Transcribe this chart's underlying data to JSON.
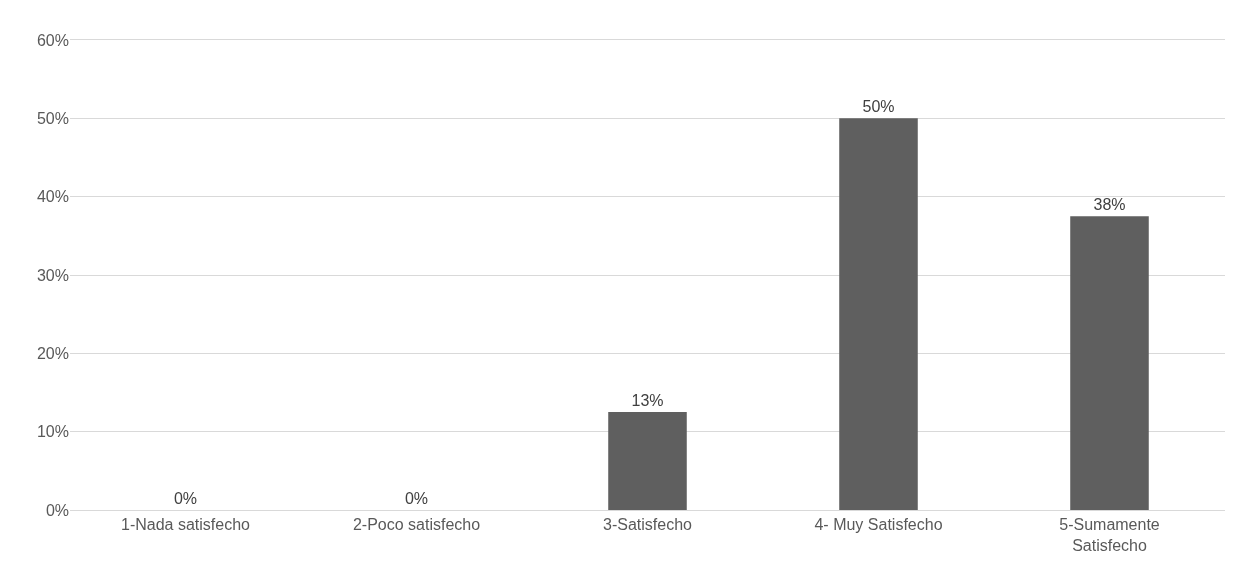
{
  "chart_data": {
    "type": "bar",
    "categories": [
      "1-Nada satisfecho",
      "2-Poco satisfecho",
      "3-Satisfecho",
      "4- Muy Satisfecho",
      "5-Sumamente Satisfecho"
    ],
    "values": [
      0,
      0,
      12.5,
      50,
      37.5
    ],
    "value_labels": [
      "0%",
      "0%",
      "13%",
      "50%",
      "38%"
    ],
    "color": "#5f5f5f",
    "ylim": [
      0,
      60
    ],
    "yticks": [
      {
        "value": 0,
        "label": "0%"
      },
      {
        "value": 10,
        "label": "10%"
      },
      {
        "value": 20,
        "label": "20%"
      },
      {
        "value": 30,
        "label": "30%"
      },
      {
        "value": 40,
        "label": "40%"
      },
      {
        "value": 50,
        "label": "50%"
      },
      {
        "value": 60,
        "label": "60%"
      }
    ],
    "grid": "y"
  }
}
